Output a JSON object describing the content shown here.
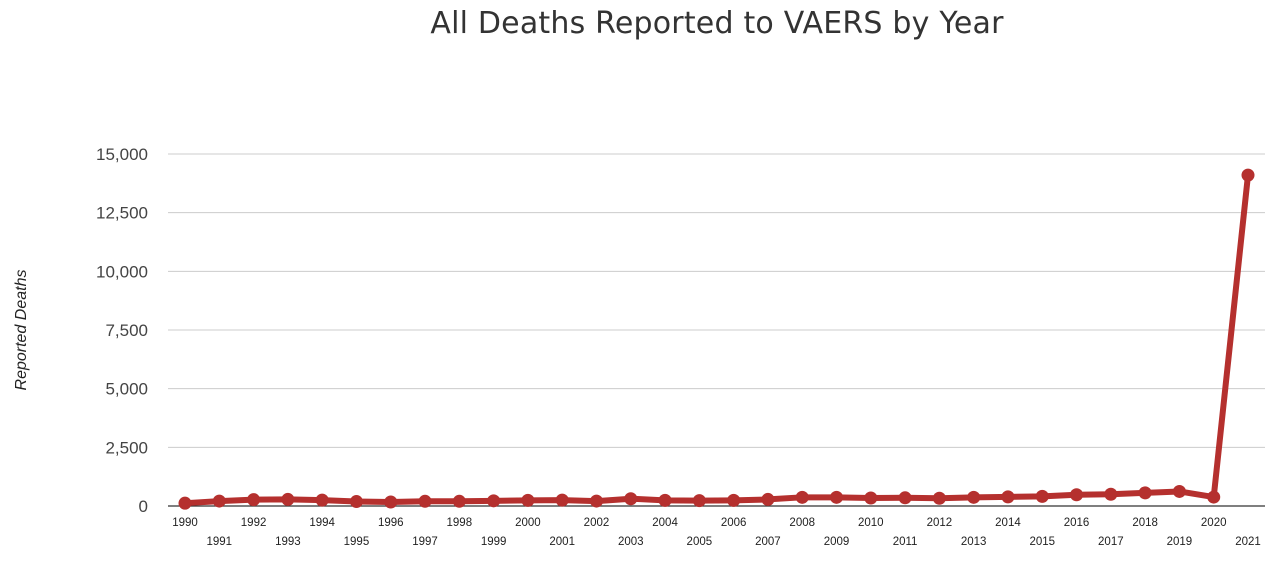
{
  "chart_data": {
    "type": "line",
    "title": "All Deaths Reported to VAERS by Year",
    "ylabel": "Reported Deaths",
    "xlabel": "",
    "ylim": [
      0,
      15000
    ],
    "yticks": [
      0,
      2500,
      5000,
      7500,
      10000,
      12500,
      15000
    ],
    "ytick_labels": [
      "0",
      "2,500",
      "5,000",
      "7,500",
      "10,000",
      "12,500",
      "15,000"
    ],
    "grid": true,
    "legend": "none",
    "line_color": "#b5302e",
    "categories": [
      "1990",
      "1991",
      "1992",
      "1993",
      "1994",
      "1995",
      "1996",
      "1997",
      "1998",
      "1999",
      "2000",
      "2001",
      "2002",
      "2003",
      "2004",
      "2005",
      "2006",
      "2007",
      "2008",
      "2009",
      "2010",
      "2011",
      "2012",
      "2013",
      "2014",
      "2015",
      "2016",
      "2017",
      "2018",
      "2019",
      "2020",
      "2021"
    ],
    "values": [
      120,
      210,
      270,
      280,
      250,
      190,
      170,
      200,
      200,
      220,
      240,
      250,
      210,
      310,
      240,
      230,
      240,
      280,
      370,
      370,
      340,
      350,
      330,
      370,
      390,
      410,
      480,
      500,
      560,
      620,
      380,
      14100
    ]
  }
}
